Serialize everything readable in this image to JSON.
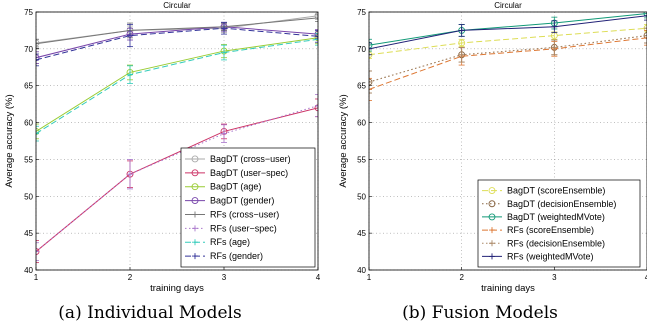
{
  "captions": [
    "(a) Individual Models",
    "(b) Fusion Models"
  ],
  "chart_data": [
    {
      "type": "line",
      "title": "Circular",
      "xlabel": "training days",
      "ylabel": "Average accuracy (%)",
      "x": [
        1,
        2,
        3,
        4
      ],
      "xticks": [
        "1",
        "2",
        "3",
        "4"
      ],
      "yticks": [
        "40",
        "45",
        "50",
        "55",
        "60",
        "65",
        "70",
        "75"
      ],
      "xlim": [
        1,
        4
      ],
      "ylim": [
        40,
        75
      ],
      "grid": true,
      "legend_position": "bottom-right",
      "series": [
        {
          "name": "BagDT (cross−user)",
          "values": [
            70.8,
            72.5,
            72.8,
            74.5
          ],
          "err": [
            0.5,
            0.6,
            0.6,
            0.5
          ],
          "color": "#aaaaaa",
          "dash": "",
          "marker": "o"
        },
        {
          "name": "BagDT (user−spec)",
          "values": [
            42.5,
            53,
            58.8,
            62
          ],
          "err": [
            1.5,
            1.8,
            1.0,
            1.2
          ],
          "color": "#cc3366",
          "dash": "",
          "marker": "o"
        },
        {
          "name": "BagDT (age)",
          "values": [
            58.8,
            66.8,
            69.7,
            71.5
          ],
          "err": [
            1.0,
            1.0,
            0.9,
            0.8
          ],
          "color": "#99cc33",
          "dash": "",
          "marker": "o"
        },
        {
          "name": "BagDT (gender)",
          "values": [
            68.8,
            72,
            73,
            72
          ],
          "err": [
            0.8,
            0.8,
            0.6,
            0.6
          ],
          "color": "#7744aa",
          "dash": "",
          "marker": "o"
        },
        {
          "name": "RFs (cross−user)",
          "values": [
            70.7,
            72.5,
            73,
            74.2
          ],
          "err": [
            0.6,
            1.0,
            0.5,
            0.5
          ],
          "color": "#777777",
          "dash": "",
          "marker": "+"
        },
        {
          "name": "RFs (user−spec)",
          "values": [
            42.5,
            53,
            58.5,
            62.3
          ],
          "err": [
            1.2,
            2.0,
            1.2,
            1.5
          ],
          "color": "#aa77cc",
          "dash": "1.5,2.5",
          "marker": "+"
        },
        {
          "name": "RFs (age)",
          "values": [
            58.5,
            66.5,
            69.5,
            71.3
          ],
          "err": [
            1.0,
            1.2,
            1.0,
            0.8
          ],
          "color": "#33ccbb",
          "dash": "6,3",
          "marker": "+"
        },
        {
          "name": "RFs (gender)",
          "values": [
            68.5,
            71.8,
            72.8,
            71.7
          ],
          "err": [
            0.8,
            1.5,
            0.8,
            0.8
          ],
          "color": "#333399",
          "dash": "6,3",
          "marker": "+"
        }
      ]
    },
    {
      "type": "line",
      "title": "Circular",
      "xlabel": "training days",
      "ylabel": "Average accuracy (%)",
      "x": [
        1,
        2,
        3,
        4
      ],
      "xticks": [
        "1",
        "2",
        "3",
        "4"
      ],
      "yticks": [
        "40",
        "45",
        "50",
        "55",
        "60",
        "65",
        "70",
        "75"
      ],
      "xlim": [
        1,
        4
      ],
      "ylim": [
        40,
        75
      ],
      "grid": true,
      "legend_position": "bottom-right",
      "series": [
        {
          "name": "BagDT (scoreEnsemble)",
          "values": [
            69.2,
            70.8,
            71.8,
            72.8
          ],
          "err": [
            0.5,
            0.5,
            0.5,
            0.5
          ],
          "color": "#dddd55",
          "dash": "6,3",
          "marker": "o"
        },
        {
          "name": "BagDT (decisionEnsemble)",
          "values": [
            65.5,
            69.2,
            70.2,
            71.8
          ],
          "err": [
            1.5,
            1.0,
            1.0,
            1.0
          ],
          "color": "#886644",
          "dash": "1.5,2.5",
          "marker": "o"
        },
        {
          "name": "BagDT (weightedMVote)",
          "values": [
            70.5,
            72.5,
            73.5,
            74.8
          ],
          "err": [
            0.8,
            0.8,
            0.8,
            0.6
          ],
          "color": "#119977",
          "dash": "",
          "marker": "o"
        },
        {
          "name": "RFs (scoreEnsemble)",
          "values": [
            64.5,
            69,
            70,
            71.5
          ],
          "err": [
            1.5,
            1.2,
            1.0,
            1.0
          ],
          "color": "#dd7733",
          "dash": "6,3",
          "marker": "+"
        },
        {
          "name": "RFs (decisionEnsemble)",
          "values": [
            65.5,
            69.2,
            70.2,
            71.8
          ],
          "err": [
            1.5,
            1.0,
            1.0,
            1.0
          ],
          "color": "#aa8866",
          "dash": "1.5,2.5",
          "marker": "+"
        },
        {
          "name": "RFs (weightedMVote)",
          "values": [
            70,
            72.5,
            73,
            74.5
          ],
          "err": [
            0.8,
            0.8,
            0.8,
            0.6
          ],
          "color": "#222277",
          "dash": "",
          "marker": "+"
        }
      ]
    }
  ]
}
